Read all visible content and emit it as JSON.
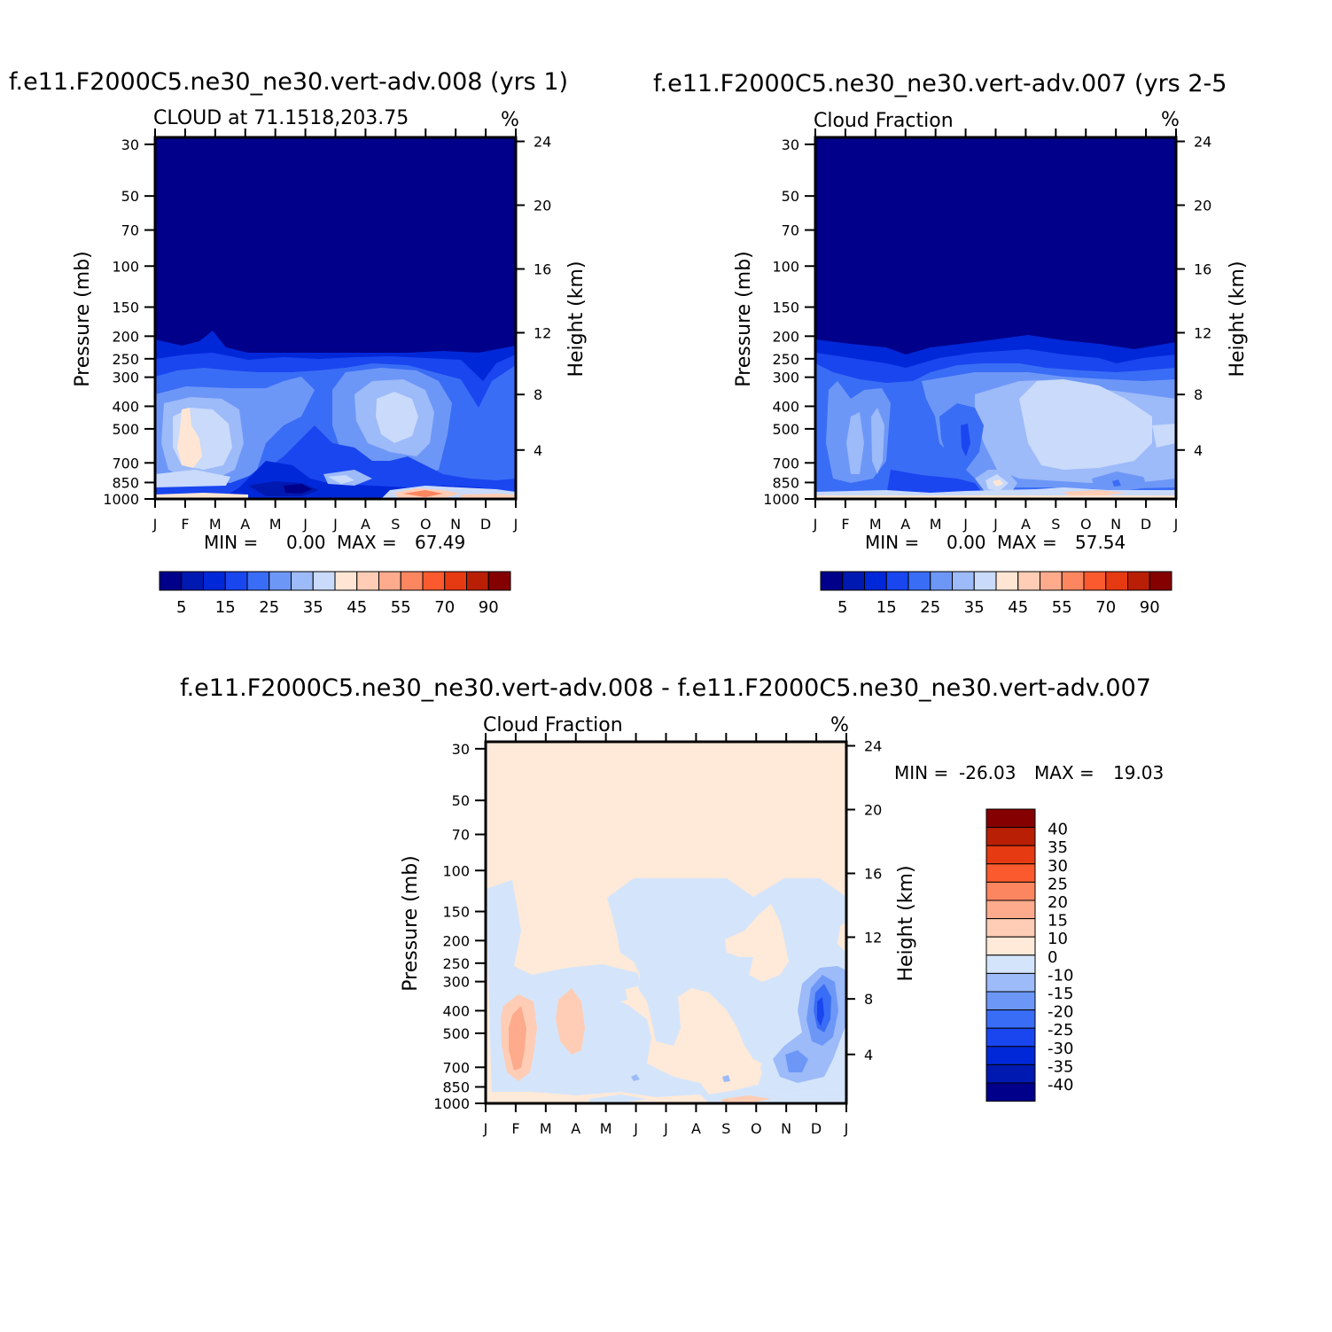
{
  "chart_data": [
    {
      "type": "heatmap",
      "title": "f.e11.F2000C5.ne30_ne30.vert-adv.008 (yrs 1)",
      "subtitle": "CLOUD at 71.1518,203.75",
      "units": "%",
      "ylabel": "Pressure (mb)",
      "y2label": "Height (km)",
      "xlabel": "",
      "x_ticks": [
        "J",
        "F",
        "M",
        "A",
        "M",
        "J",
        "J",
        "A",
        "S",
        "O",
        "N",
        "D",
        "J"
      ],
      "y_ticks": [
        30,
        50,
        70,
        100,
        150,
        200,
        250,
        300,
        400,
        500,
        700,
        850,
        1000
      ],
      "y2_ticks": [
        24,
        20,
        16,
        12,
        8,
        4
      ],
      "ylim": [
        30,
        1000
      ],
      "log_scale_y": true,
      "stats": {
        "min_label": "MIN =",
        "min": "0.00",
        "max_label": "MAX =",
        "max": "67.49"
      },
      "colorbar": {
        "orientation": "horizontal",
        "labels": [
          "5",
          "15",
          "25",
          "35",
          "45",
          "55",
          "70",
          "90"
        ]
      }
    },
    {
      "type": "heatmap",
      "title": "f.e11.F2000C5.ne30_ne30.vert-adv.007 (yrs 2-5",
      "subtitle": "Cloud Fraction",
      "units": "%",
      "ylabel": "Pressure (mb)",
      "y2label": "Height (km)",
      "xlabel": "",
      "x_ticks": [
        "J",
        "F",
        "M",
        "A",
        "M",
        "J",
        "J",
        "A",
        "S",
        "O",
        "N",
        "D",
        "J"
      ],
      "y_ticks": [
        30,
        50,
        70,
        100,
        150,
        200,
        250,
        300,
        400,
        500,
        700,
        850,
        1000
      ],
      "y2_ticks": [
        24,
        20,
        16,
        12,
        8,
        4
      ],
      "ylim": [
        30,
        1000
      ],
      "log_scale_y": true,
      "stats": {
        "min_label": "MIN =",
        "min": "0.00",
        "max_label": "MAX =",
        "max": "57.54"
      },
      "colorbar": {
        "orientation": "horizontal",
        "labels": [
          "5",
          "15",
          "25",
          "35",
          "45",
          "55",
          "70",
          "90"
        ]
      }
    },
    {
      "type": "heatmap",
      "title": "f.e11.F2000C5.ne30_ne30.vert-adv.008 - f.e11.F2000C5.ne30_ne30.vert-adv.007",
      "subtitle": "Cloud Fraction",
      "units": "%",
      "ylabel": "Pressure (mb)",
      "y2label": "Height (km)",
      "xlabel": "",
      "x_ticks": [
        "J",
        "F",
        "M",
        "A",
        "M",
        "J",
        "J",
        "A",
        "S",
        "O",
        "N",
        "D",
        "J"
      ],
      "y_ticks": [
        30,
        50,
        70,
        100,
        150,
        200,
        250,
        300,
        400,
        500,
        700,
        850,
        1000
      ],
      "y2_ticks": [
        24,
        20,
        16,
        12,
        8,
        4
      ],
      "ylim": [
        30,
        1000
      ],
      "log_scale_y": true,
      "stats": {
        "min_label": "MIN =",
        "min": "-26.03",
        "max_label": "MAX =",
        "max": "19.03"
      },
      "colorbar": {
        "orientation": "vertical",
        "labels": [
          "40",
          "35",
          "30",
          "25",
          "20",
          "15",
          "10",
          "0",
          "-10",
          "-15",
          "-20",
          "-25",
          "-30",
          "-35",
          "-40"
        ]
      }
    }
  ],
  "colors": {
    "abs_scale": [
      "#00008a",
      "#0019b0",
      "#0028d8",
      "#1a46f0",
      "#3a6df5",
      "#6d97f7",
      "#9dbaf9",
      "#c9dafb",
      "#ffe6d4",
      "#ffcdb5",
      "#fdab8c",
      "#fc8660",
      "#fa5a2e",
      "#e63a12",
      "#b81f05",
      "#850000"
    ],
    "diff_scale": [
      "#00008a",
      "#0019b0",
      "#0028d8",
      "#1a46f0",
      "#3a6df5",
      "#6d97f7",
      "#9dbaf9",
      "#d4e5fb",
      "#ffe9d8",
      "#ffcdb5",
      "#fdab8c",
      "#fc8660",
      "#fa5a2e",
      "#e63a12",
      "#b81f05",
      "#850000"
    ]
  }
}
